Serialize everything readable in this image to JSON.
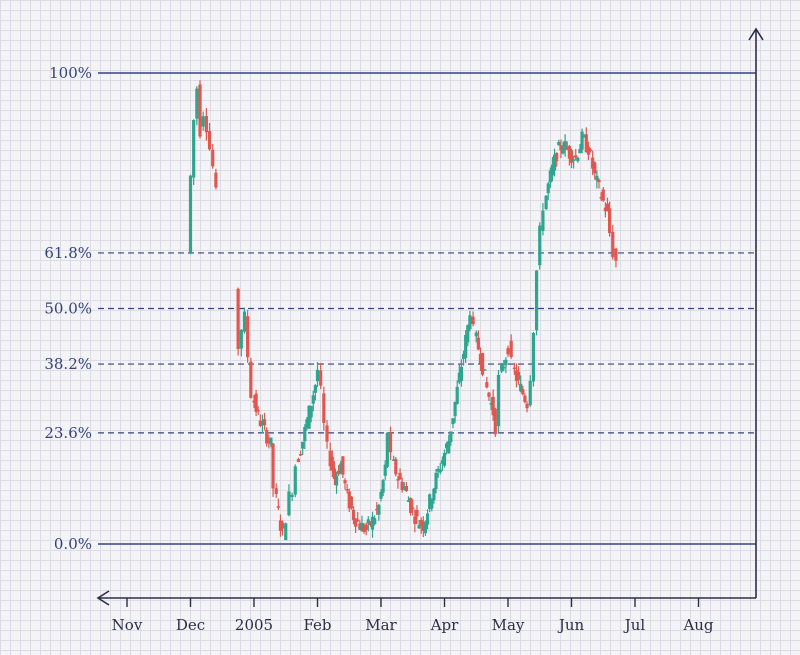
{
  "chart_data": {
    "type": "candlestick",
    "title": "",
    "xlabel": "",
    "ylabel": "",
    "fibonacci_levels": [
      {
        "label": "100%",
        "ratio": 1.0,
        "style": "solid"
      },
      {
        "label": "61.8%",
        "ratio": 0.618,
        "style": "dashed"
      },
      {
        "label": "50.0%",
        "ratio": 0.5,
        "style": "dashed"
      },
      {
        "label": "38.2%",
        "ratio": 0.382,
        "style": "dashed"
      },
      {
        "label": "23.6%",
        "ratio": 0.236,
        "style": "dashed"
      },
      {
        "label": "0.0%",
        "ratio": 0.0,
        "style": "solid"
      }
    ],
    "x_ticks": [
      {
        "label": "Nov",
        "month": 0
      },
      {
        "label": "Dec",
        "month": 1
      },
      {
        "label": "2005",
        "month": 2
      },
      {
        "label": "Feb",
        "month": 3
      },
      {
        "label": "Mar",
        "month": 4
      },
      {
        "label": "Apr",
        "month": 5
      },
      {
        "label": "May",
        "month": 6
      },
      {
        "label": "Jun",
        "month": 7
      },
      {
        "label": "Jul",
        "month": 8
      },
      {
        "label": "Aug",
        "month": 9
      }
    ],
    "colors": {
      "up": "#2fa58f",
      "down": "#e0574f",
      "level": "#34447a",
      "axis": "#2b2f45"
    },
    "grid": true,
    "price_path": [
      [
        1.0,
        0.62
      ],
      [
        1.05,
        0.78
      ],
      [
        1.1,
        0.9
      ],
      [
        1.15,
        0.97
      ],
      [
        1.2,
        0.88
      ],
      [
        1.25,
        0.92
      ],
      [
        1.3,
        0.89
      ],
      [
        1.35,
        0.84
      ],
      [
        1.4,
        0.8
      ],
      [
        1.45,
        0.74
      ],
      [
        1.75,
        0.54
      ],
      [
        1.8,
        0.42
      ],
      [
        1.85,
        0.46
      ],
      [
        1.9,
        0.48
      ],
      [
        1.95,
        0.4
      ],
      [
        2.0,
        0.32
      ],
      [
        2.1,
        0.27
      ],
      [
        2.2,
        0.24
      ],
      [
        2.3,
        0.21
      ],
      [
        2.35,
        0.12
      ],
      [
        2.45,
        0.04
      ],
      [
        2.5,
        0.02
      ],
      [
        2.55,
        0.06
      ],
      [
        2.6,
        0.1
      ],
      [
        2.65,
        0.12
      ],
      [
        2.7,
        0.17
      ],
      [
        2.8,
        0.22
      ],
      [
        2.9,
        0.28
      ],
      [
        3.0,
        0.34
      ],
      [
        3.05,
        0.37
      ],
      [
        3.1,
        0.32
      ],
      [
        3.15,
        0.25
      ],
      [
        3.2,
        0.2
      ],
      [
        3.3,
        0.14
      ],
      [
        3.4,
        0.17
      ],
      [
        3.5,
        0.1
      ],
      [
        3.6,
        0.06
      ],
      [
        3.7,
        0.04
      ],
      [
        3.8,
        0.03
      ],
      [
        3.9,
        0.05
      ],
      [
        4.0,
        0.08
      ],
      [
        4.1,
        0.16
      ],
      [
        4.15,
        0.24
      ],
      [
        4.2,
        0.18
      ],
      [
        4.3,
        0.14
      ],
      [
        4.4,
        0.12
      ],
      [
        4.5,
        0.08
      ],
      [
        4.6,
        0.05
      ],
      [
        4.7,
        0.04
      ],
      [
        4.8,
        0.09
      ],
      [
        4.9,
        0.14
      ],
      [
        5.0,
        0.18
      ],
      [
        5.1,
        0.22
      ],
      [
        5.2,
        0.3
      ],
      [
        5.3,
        0.38
      ],
      [
        5.4,
        0.46
      ],
      [
        5.45,
        0.5
      ],
      [
        5.5,
        0.45
      ],
      [
        5.6,
        0.4
      ],
      [
        5.7,
        0.33
      ],
      [
        5.8,
        0.28
      ],
      [
        5.85,
        0.25
      ],
      [
        5.9,
        0.35
      ],
      [
        6.0,
        0.4
      ],
      [
        6.05,
        0.42
      ],
      [
        6.1,
        0.38
      ],
      [
        6.2,
        0.34
      ],
      [
        6.3,
        0.31
      ],
      [
        6.35,
        0.3
      ],
      [
        6.4,
        0.36
      ],
      [
        6.45,
        0.46
      ],
      [
        6.5,
        0.58
      ],
      [
        6.55,
        0.66
      ],
      [
        6.6,
        0.72
      ],
      [
        6.7,
        0.78
      ],
      [
        6.8,
        0.83
      ],
      [
        6.9,
        0.85
      ],
      [
        7.0,
        0.83
      ],
      [
        7.1,
        0.82
      ],
      [
        7.2,
        0.86
      ],
      [
        7.3,
        0.84
      ],
      [
        7.4,
        0.78
      ],
      [
        7.5,
        0.74
      ],
      [
        7.6,
        0.7
      ],
      [
        7.65,
        0.66
      ],
      [
        7.7,
        0.62
      ],
      [
        7.75,
        0.6
      ]
    ]
  }
}
